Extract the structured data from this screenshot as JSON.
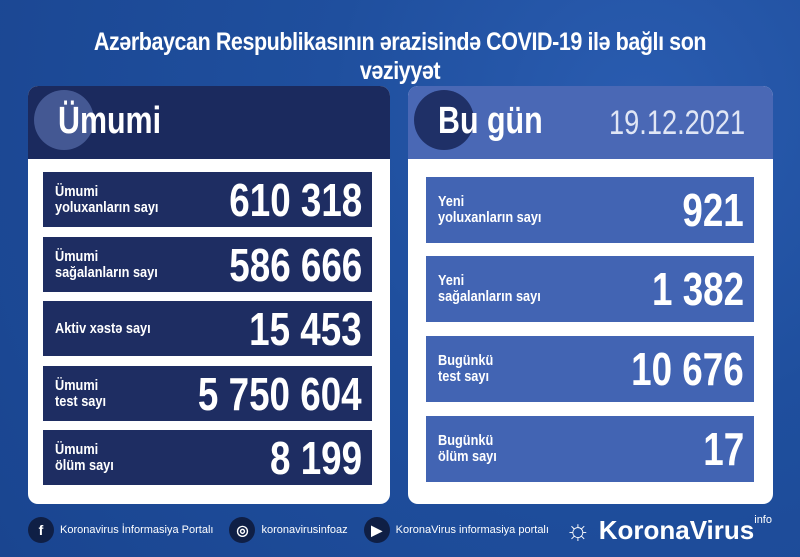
{
  "title": "Azərbaycan Respublikasının ərazisində COVID-19 ilə bağlı son vəziyyət",
  "colors": {
    "background": "#1f4f9e",
    "left_header": "#1b2a5e",
    "left_rows": "#1e2d62",
    "right_header": "#4a68b5",
    "right_rows": "#4264b3"
  },
  "total": {
    "heading": "Ümumi",
    "rows": [
      {
        "label1": "Ümumi",
        "label2": "yoluxanların sayı",
        "value": "610 318"
      },
      {
        "label1": "Ümumi",
        "label2": "sağalanların sayı",
        "value": "586 666"
      },
      {
        "label1": "Aktiv xəstə sayı",
        "label2": "",
        "value": "15 453"
      },
      {
        "label1": "Ümumi",
        "label2": "test sayı",
        "value": "5 750 604"
      },
      {
        "label1": "Ümumi",
        "label2": "ölüm sayı",
        "value": "8 199"
      }
    ]
  },
  "today": {
    "heading": "Bu gün",
    "date": "19.12.2021",
    "rows": [
      {
        "label1": "Yeni",
        "label2": "yoluxanların sayı",
        "value": "921"
      },
      {
        "label1": "Yeni",
        "label2": "sağalanların sayı",
        "value": "1 382"
      },
      {
        "label1": "Bugünkü",
        "label2": "test sayı",
        "value": "10 676"
      },
      {
        "label1": "Bugünkü",
        "label2": "ölüm sayı",
        "value": "17"
      }
    ]
  },
  "footer": {
    "facebook": "Koronavirus İnformasiya Portalı",
    "instagram": "koronavirusinfoaz",
    "youtube": "KoronaVirus informasiya portalı",
    "logo": "KoronaVirus",
    "logo_sup": "info"
  }
}
